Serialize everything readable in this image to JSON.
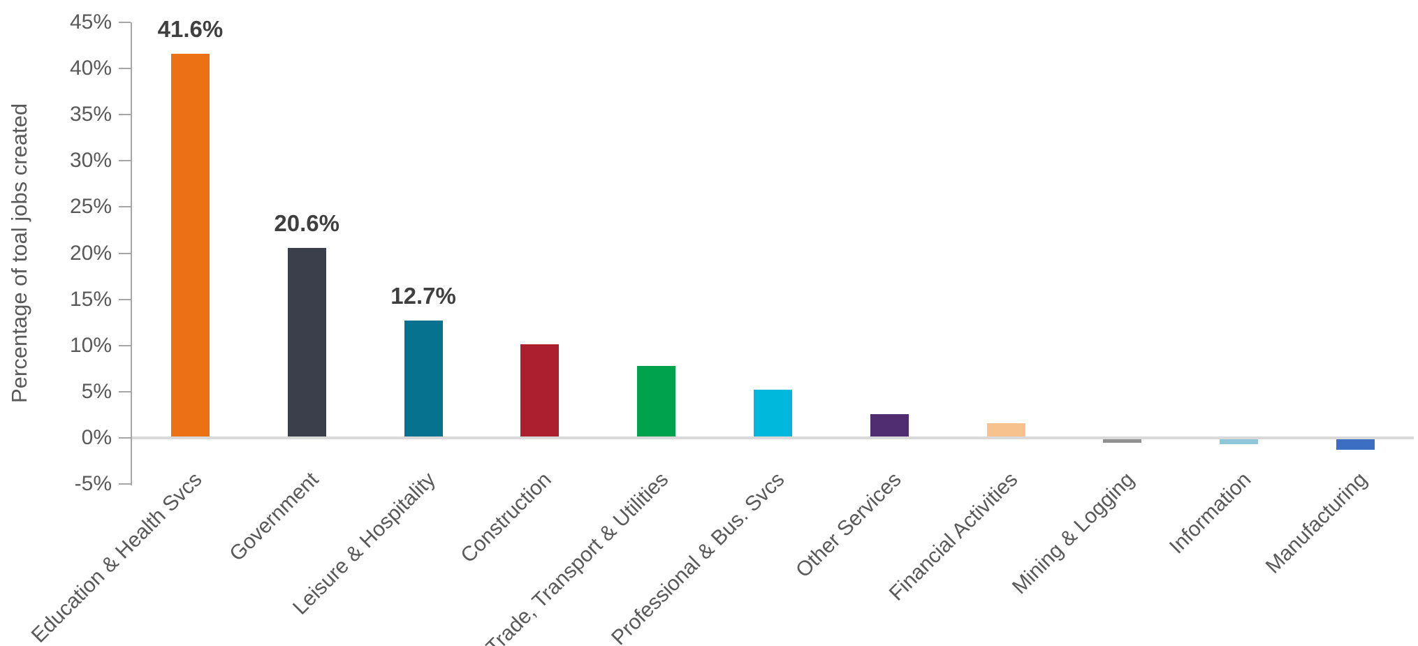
{
  "chart_data": {
    "type": "bar",
    "title": "",
    "xlabel": "",
    "ylabel": "Percentage of toal jobs created",
    "ylim": [
      -5,
      45
    ],
    "grid": false,
    "legend": false,
    "yticks": [
      45,
      40,
      35,
      30,
      25,
      20,
      15,
      10,
      5,
      0,
      -5
    ],
    "ytick_labels": [
      "45%",
      "40%",
      "35%",
      "30%",
      "25%",
      "20%",
      "15%",
      "10%",
      "5%",
      "0%",
      "-5%"
    ],
    "categories": [
      "Education & Health Svcs",
      "Government",
      "Leisure & Hospitality",
      "Construction",
      "Trade, Transport & Utilities",
      "Professional & Bus. Svcs",
      "Other Services",
      "Financial Activities",
      "Mining & Logging",
      "Information",
      "Manufacturing"
    ],
    "values": [
      41.6,
      20.6,
      12.7,
      10.1,
      7.8,
      5.2,
      2.6,
      1.6,
      -0.5,
      -0.7,
      -1.3
    ],
    "data_labels": [
      "41.6%",
      "20.6%",
      "12.7%",
      "",
      "",
      "",
      "",
      "",
      "",
      "",
      ""
    ],
    "bar_colors": [
      "#EC7014",
      "#3A3F4B",
      "#07728F",
      "#AC1F2E",
      "#00A24E",
      "#00B8DC",
      "#4F2D70",
      "#F7C28E",
      "#909090",
      "#8FC6DA",
      "#3C6FC4"
    ],
    "axis_line_color": "#A6A6A6",
    "zero_line_color": "#D9D9D9",
    "tick_label_color": "#595959",
    "data_label_color": "#3F3F3F"
  }
}
